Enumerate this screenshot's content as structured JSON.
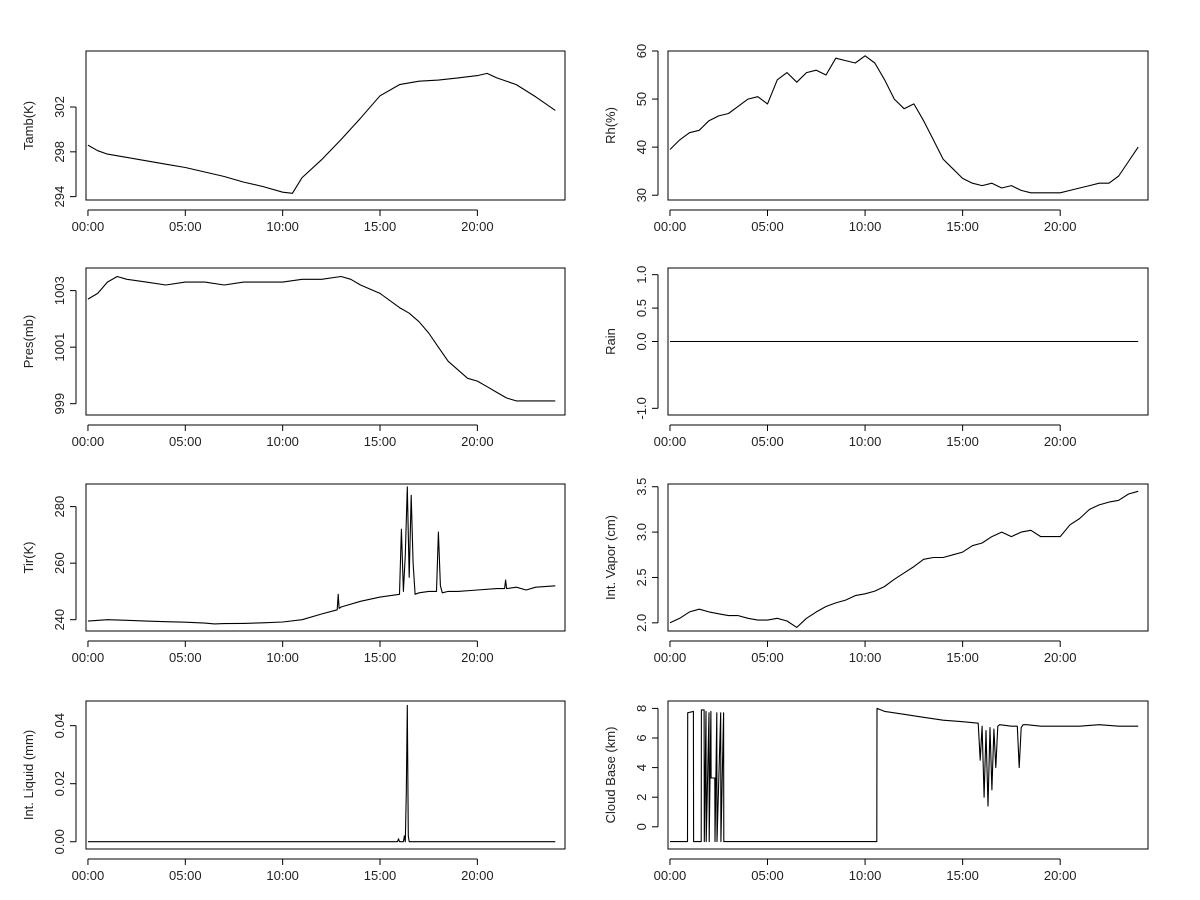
{
  "chart_data": [
    {
      "type": "line",
      "ylabel": "Tamb(K)",
      "xlabel": "",
      "title": "",
      "xlim": [
        -0.1,
        24.5
      ],
      "ylim": [
        293.7,
        307.0
      ],
      "xticks": [
        0,
        5,
        10,
        15,
        20
      ],
      "xtick_labels": [
        "00:00",
        "05:00",
        "10:00",
        "15:00",
        "20:00"
      ],
      "yticks": [
        294,
        298,
        302
      ],
      "ytick_labels": [
        "294",
        "298",
        "302"
      ],
      "grid": false,
      "legend": "none",
      "series": [
        {
          "x": [
            0,
            0.5,
            1,
            2,
            3,
            4,
            5,
            6,
            7,
            8,
            9,
            10,
            10.5,
            11,
            12,
            13,
            14,
            15,
            16,
            17,
            18,
            19,
            20,
            20.5,
            21,
            22,
            23,
            24
          ],
          "values": [
            298.6,
            298.1,
            297.8,
            297.5,
            297.2,
            296.9,
            296.6,
            296.2,
            295.8,
            295.3,
            294.9,
            294.4,
            294.3,
            295.7,
            297.3,
            299.1,
            301.0,
            303.0,
            304.0,
            304.3,
            304.4,
            304.6,
            304.8,
            305.0,
            304.6,
            304.0,
            302.9,
            301.7
          ]
        }
      ]
    },
    {
      "type": "line",
      "ylabel": "Rh(%)",
      "xlabel": "",
      "title": "",
      "xlim": [
        -0.1,
        24.5
      ],
      "ylim": [
        29,
        60
      ],
      "xticks": [
        0,
        5,
        10,
        15,
        20
      ],
      "xtick_labels": [
        "00:00",
        "05:00",
        "10:00",
        "15:00",
        "20:00"
      ],
      "yticks": [
        30,
        40,
        50,
        60
      ],
      "ytick_labels": [
        "30",
        "40",
        "50",
        "60"
      ],
      "grid": false,
      "legend": "none",
      "series": [
        {
          "x": [
            0,
            0.5,
            1,
            1.5,
            2,
            2.5,
            3,
            3.5,
            4,
            4.5,
            5,
            5.5,
            6,
            6.5,
            7,
            7.5,
            8,
            8.5,
            9,
            9.5,
            10,
            10.5,
            11,
            11.5,
            12,
            12.5,
            13,
            13.5,
            14,
            14.5,
            15,
            15.5,
            16,
            16.5,
            17,
            17.5,
            18,
            18.5,
            19,
            19.5,
            20,
            20.5,
            21,
            21.5,
            22,
            22.5,
            23,
            23.5,
            24
          ],
          "values": [
            39.5,
            41.5,
            43.0,
            43.5,
            45.5,
            46.5,
            47.0,
            48.5,
            50.0,
            50.5,
            49.0,
            54.0,
            55.5,
            53.5,
            55.5,
            56.0,
            55.0,
            58.5,
            58.0,
            57.5,
            59.0,
            57.5,
            54.0,
            50.0,
            48.0,
            49.0,
            45.5,
            41.5,
            37.5,
            35.5,
            33.5,
            32.5,
            32.0,
            32.5,
            31.5,
            32.0,
            31.0,
            30.5,
            30.5,
            30.5,
            30.5,
            31.0,
            31.5,
            32.0,
            32.5,
            32.5,
            34.0,
            37.0,
            40.0
          ]
        }
      ]
    },
    {
      "type": "line",
      "ylabel": "Pres(mb)",
      "xlabel": "",
      "title": "",
      "xlim": [
        -0.1,
        24.5
      ],
      "ylim": [
        998.6,
        1003.8
      ],
      "xticks": [
        0,
        5,
        10,
        15,
        20
      ],
      "xtick_labels": [
        "00:00",
        "05:00",
        "10:00",
        "15:00",
        "20:00"
      ],
      "yticks": [
        999,
        1001,
        1003
      ],
      "ytick_labels": [
        "999",
        "1001",
        "1003"
      ],
      "grid": false,
      "legend": "none",
      "series": [
        {
          "x": [
            0,
            0.5,
            1,
            1.5,
            2,
            3,
            4,
            5,
            6,
            7,
            8,
            9,
            10,
            11,
            12,
            13,
            13.5,
            14,
            15,
            16,
            16.5,
            17,
            17.5,
            18,
            18.5,
            19,
            19.5,
            20,
            20.5,
            21,
            21.5,
            22,
            22.5,
            23,
            23.5,
            24
          ],
          "values": [
            1002.7,
            1002.9,
            1003.3,
            1003.5,
            1003.4,
            1003.3,
            1003.2,
            1003.3,
            1003.3,
            1003.2,
            1003.3,
            1003.3,
            1003.3,
            1003.4,
            1003.4,
            1003.5,
            1003.4,
            1003.2,
            1002.9,
            1002.4,
            1002.2,
            1001.9,
            1001.5,
            1001.0,
            1000.5,
            1000.2,
            999.9,
            999.8,
            999.6,
            999.4,
            999.2,
            999.1,
            999.1,
            999.1,
            999.1,
            999.1
          ]
        }
      ]
    },
    {
      "type": "line",
      "ylabel": "Rain",
      "xlabel": "",
      "title": "",
      "xlim": [
        -0.1,
        24.5
      ],
      "ylim": [
        -1.1,
        1.1
      ],
      "xticks": [
        0,
        5,
        10,
        15,
        20
      ],
      "xtick_labels": [
        "00:00",
        "05:00",
        "10:00",
        "15:00",
        "20:00"
      ],
      "yticks": [
        -1.0,
        0.0,
        0.5,
        1.0
      ],
      "ytick_labels": [
        "-1.0",
        "0.0",
        "0.5",
        "1.0"
      ],
      "grid": false,
      "legend": "none",
      "series": [
        {
          "x": [
            0,
            24
          ],
          "values": [
            0,
            0
          ]
        }
      ]
    },
    {
      "type": "line",
      "ylabel": "Tir(K)",
      "xlabel": "",
      "title": "",
      "xlim": [
        -0.1,
        24.5
      ],
      "ylim": [
        236,
        288
      ],
      "xticks": [
        0,
        5,
        10,
        15,
        20
      ],
      "xtick_labels": [
        "00:00",
        "05:00",
        "10:00",
        "15:00",
        "20:00"
      ],
      "yticks": [
        240,
        260,
        280
      ],
      "ytick_labels": [
        "240",
        "260",
        "280"
      ],
      "grid": false,
      "legend": "none",
      "series": [
        {
          "x": [
            0,
            1,
            2,
            3,
            4,
            5,
            6,
            6.5,
            7,
            8,
            9,
            10,
            11,
            12,
            12.8,
            12.85,
            12.9,
            13,
            14,
            15,
            15.5,
            16,
            16.1,
            16.2,
            16.3,
            16.4,
            16.5,
            16.6,
            16.7,
            16.8,
            17,
            17.5,
            17.9,
            18.0,
            18.1,
            18.2,
            18.5,
            19,
            20,
            21,
            21.4,
            21.45,
            21.5,
            22,
            22.5,
            23,
            24
          ],
          "values": [
            239.5,
            240.0,
            239.8,
            239.5,
            239.3,
            239.1,
            238.8,
            238.5,
            238.6,
            238.7,
            238.9,
            239.2,
            240.0,
            242.0,
            243.5,
            249.0,
            244.0,
            244.5,
            246.5,
            248.0,
            248.5,
            249.0,
            272.0,
            250.0,
            263.0,
            287.0,
            255.0,
            284.0,
            260.0,
            249.0,
            249.5,
            250.0,
            250.0,
            271.0,
            252.0,
            249.5,
            250.0,
            250.0,
            250.5,
            251.0,
            251.0,
            254.0,
            251.0,
            251.5,
            250.5,
            251.5,
            252.0
          ]
        }
      ]
    },
    {
      "type": "line",
      "ylabel": "Int. Vapor (cm)",
      "xlabel": "",
      "title": "",
      "xlim": [
        -0.1,
        24.5
      ],
      "ylim": [
        1.91,
        3.53
      ],
      "xticks": [
        0,
        5,
        10,
        15,
        20
      ],
      "xtick_labels": [
        "00:00",
        "05:00",
        "10:00",
        "15:00",
        "20:00"
      ],
      "yticks": [
        2.0,
        2.5,
        3.0,
        3.5
      ],
      "ytick_labels": [
        "2.0",
        "2.5",
        "3.0",
        "3.5"
      ],
      "grid": false,
      "legend": "none",
      "series": [
        {
          "x": [
            0,
            0.5,
            1,
            1.5,
            2,
            2.5,
            3,
            3.5,
            4,
            4.5,
            5,
            5.5,
            6,
            6.5,
            7,
            7.5,
            8,
            8.5,
            9,
            9.5,
            10,
            10.5,
            11,
            11.5,
            12,
            12.5,
            13,
            13.5,
            14,
            14.5,
            15,
            15.5,
            16,
            16.5,
            17,
            17.5,
            18,
            18.5,
            19,
            19.5,
            20,
            20.5,
            21,
            21.5,
            22,
            22.5,
            23,
            23.5,
            24
          ],
          "values": [
            2.0,
            2.05,
            2.12,
            2.15,
            2.12,
            2.1,
            2.08,
            2.08,
            2.05,
            2.03,
            2.03,
            2.05,
            2.02,
            1.95,
            2.05,
            2.12,
            2.18,
            2.22,
            2.25,
            2.3,
            2.32,
            2.35,
            2.4,
            2.48,
            2.55,
            2.62,
            2.7,
            2.72,
            2.72,
            2.75,
            2.78,
            2.85,
            2.88,
            2.95,
            3.0,
            2.95,
            3.0,
            3.02,
            2.95,
            2.95,
            2.95,
            3.08,
            3.15,
            3.25,
            3.3,
            3.33,
            3.35,
            3.42,
            3.45
          ]
        }
      ]
    },
    {
      "type": "line",
      "ylabel": "Int. Liquid (mm)",
      "xlabel": "",
      "title": "",
      "xlim": [
        -0.1,
        24.5
      ],
      "ylim": [
        -0.0025,
        0.0485
      ],
      "xticks": [
        0,
        5,
        10,
        15,
        20
      ],
      "xtick_labels": [
        "00:00",
        "05:00",
        "10:00",
        "15:00",
        "20:00"
      ],
      "yticks": [
        0.0,
        0.02,
        0.04
      ],
      "ytick_labels": [
        "0.00",
        "0.02",
        "0.04"
      ],
      "grid": false,
      "legend": "none",
      "series": [
        {
          "x": [
            0,
            15.9,
            15.95,
            16.0,
            16.05,
            16.2,
            16.25,
            16.3,
            16.35,
            16.4,
            16.45,
            16.5,
            16.55,
            24
          ],
          "values": [
            0,
            0,
            0.001,
            0,
            0,
            0,
            0.002,
            0,
            0.017,
            0.047,
            0.002,
            0,
            0,
            0
          ]
        }
      ]
    },
    {
      "type": "line",
      "ylabel": "Cloud Base (km)",
      "xlabel": "",
      "title": "",
      "xlim": [
        -0.1,
        24.5
      ],
      "ylim": [
        -1.5,
        8.5
      ],
      "xticks": [
        0,
        5,
        10,
        15,
        20
      ],
      "xtick_labels": [
        "00:00",
        "05:00",
        "10:00",
        "15:00",
        "20:00"
      ],
      "yticks": [
        0,
        2,
        4,
        6,
        8
      ],
      "ytick_labels": [
        "0",
        "2",
        "4",
        "6",
        "8"
      ],
      "grid": false,
      "legend": "none",
      "series": [
        {
          "x": [
            0,
            0.9,
            0.91,
            1.2,
            1.21,
            1.6,
            1.61,
            1.75,
            1.76,
            1.85,
            1.86,
            2.0,
            2.01,
            2.1,
            2.11,
            2.3,
            2.31,
            2.4,
            2.41,
            2.6,
            2.61,
            2.75,
            2.76,
            2.9,
            2.91,
            10.6,
            10.61,
            11,
            12,
            13,
            14,
            15,
            15.8,
            15.9,
            16.0,
            16.1,
            16.2,
            16.3,
            16.4,
            16.5,
            16.6,
            16.7,
            16.8,
            16.9,
            17.5,
            17.8,
            17.9,
            18.0,
            18.1,
            18.3,
            19,
            20,
            21,
            22,
            23,
            24
          ],
          "values": [
            -1,
            -1,
            7.7,
            7.8,
            -1,
            -1,
            7.9,
            7.9,
            -1,
            7.8,
            -1,
            7.7,
            -1,
            7.8,
            3.3,
            3.3,
            -1,
            7.7,
            -1,
            7.7,
            -1,
            7.7,
            -1,
            -1,
            -1,
            -1,
            8.0,
            7.8,
            7.6,
            7.4,
            7.2,
            7.1,
            7.0,
            4.5,
            6.8,
            2.0,
            6.5,
            1.4,
            6.7,
            2.5,
            6.6,
            4.0,
            6.8,
            6.9,
            6.8,
            6.8,
            4.0,
            6.7,
            6.9,
            6.9,
            6.8,
            6.8,
            6.8,
            6.9,
            6.8,
            6.8
          ]
        }
      ]
    }
  ]
}
